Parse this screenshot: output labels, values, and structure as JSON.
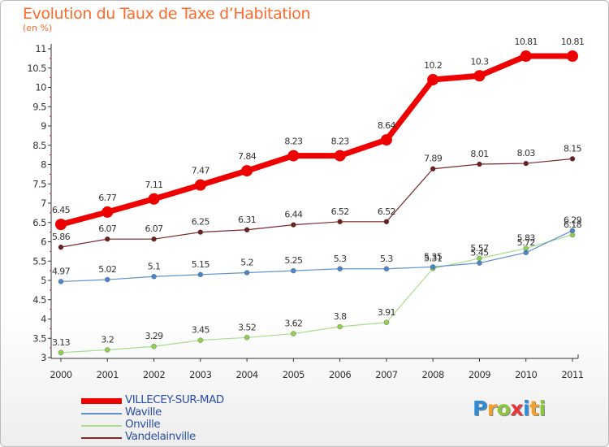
{
  "title": "Evolution du Taux de Taxe d’Habitation",
  "unit": "(en %)",
  "logo": {
    "text": "Proxiti",
    "letters": [
      {
        "ch": "P",
        "color": "#2e8bd6"
      },
      {
        "ch": "r",
        "color": "#f2a12c"
      },
      {
        "ch": "o",
        "color": "#8cc63e"
      },
      {
        "ch": "x",
        "color": "#e8353a"
      },
      {
        "ch": "i",
        "color": "#2e8bd6"
      },
      {
        "ch": "t",
        "color": "#f2a12c"
      },
      {
        "ch": "i",
        "color": "#8cc63e"
      }
    ]
  },
  "chart_data": {
    "type": "line",
    "title": "Evolution du Taux de Taxe d’Habitation",
    "ylabel": "(en %)",
    "xlabel": "",
    "x": [
      "2000",
      "2001",
      "2002",
      "2003",
      "2004",
      "2005",
      "2006",
      "2007",
      "2008",
      "2009",
      "2010",
      "2011"
    ],
    "ylim": [
      3,
      11
    ],
    "yticks": [
      3,
      3.5,
      4,
      4.5,
      5,
      5.5,
      6,
      6.5,
      7,
      7.5,
      8,
      8.5,
      9,
      9.5,
      10,
      10.5,
      11
    ],
    "ytick_labels": [
      "3",
      "3.5",
      "4",
      "4.5",
      "5",
      "5.5",
      "6",
      "6.5",
      "7",
      "7.5",
      "8",
      "8.5",
      "9",
      "9.5",
      "10",
      "10.5",
      "11"
    ],
    "grid": false,
    "legend_position": "bottom-left",
    "series": [
      {
        "name": "VILLECEY-SUR-MAD",
        "color": "#ee0000",
        "emphasis": true,
        "values": [
          6.45,
          6.77,
          7.11,
          7.47,
          7.84,
          8.23,
          8.23,
          8.64,
          10.2,
          10.3,
          10.81,
          10.81
        ],
        "labels": [
          "6.45",
          "6.77",
          "7.11",
          "7.47",
          "7.84",
          "8.23",
          "8.23",
          "8.64",
          "10.2",
          "10.3",
          "10.81",
          "10.81"
        ]
      },
      {
        "name": "Waville",
        "color": "#5f93c8",
        "point_color": "#4a86c7",
        "values": [
          4.97,
          5.02,
          5.1,
          5.15,
          5.2,
          5.25,
          5.3,
          5.3,
          5.35,
          5.45,
          5.72,
          6.29
        ],
        "labels": [
          "4.97",
          "5.02",
          "5.1",
          "5.15",
          "5.2",
          "5.25",
          "5.3",
          "5.3",
          "5.35",
          "5.45",
          "5.72",
          "6.29"
        ]
      },
      {
        "name": "Onville",
        "color": "#a9dc8c",
        "point_color": "#8fd14f",
        "values": [
          3.13,
          3.2,
          3.29,
          3.45,
          3.52,
          3.62,
          3.8,
          3.91,
          5.31,
          5.57,
          5.83,
          6.18
        ],
        "labels": [
          "3.13",
          "3.2",
          "3.29",
          "3.45",
          "3.52",
          "3.62",
          "3.8",
          "3.91",
          "5.31",
          "5.57",
          "5.83",
          "6.18"
        ]
      },
      {
        "name": "Vandelainville",
        "color": "#7a2a2a",
        "point_color": "#6b1f1f",
        "values": [
          5.86,
          6.07,
          6.07,
          6.25,
          6.31,
          6.44,
          6.52,
          6.52,
          7.89,
          8.01,
          8.03,
          8.15
        ],
        "labels": [
          "5.86",
          "6.07",
          "6.07",
          "6.25",
          "6.31",
          "6.44",
          "6.52",
          "6.52",
          "7.89",
          "8.01",
          "8.03",
          "8.15"
        ]
      }
    ]
  }
}
